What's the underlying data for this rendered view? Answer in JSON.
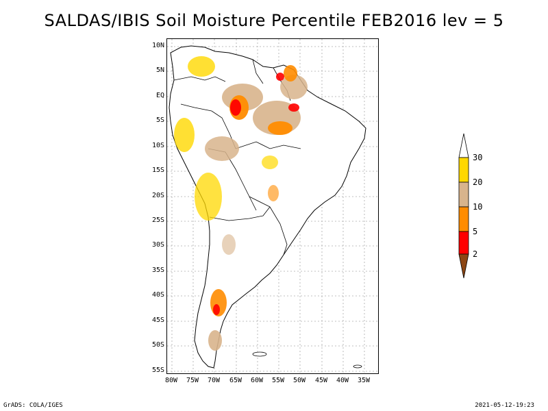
{
  "title": "SALDAS/IBIS Soil Moisture Percentile FEB2016 lev = 5",
  "lat_labels": [
    "10N",
    "5N",
    "EQ",
    "5S",
    "10S",
    "15S",
    "20S",
    "25S",
    "30S",
    "35S",
    "40S",
    "45S",
    "50S",
    "55S"
  ],
  "lon_labels": [
    "80W",
    "75W",
    "70W",
    "65W",
    "60W",
    "55W",
    "50W",
    "45W",
    "40W",
    "35W"
  ],
  "legend": {
    "labels": [
      "30",
      "20",
      "10",
      "5",
      "2"
    ],
    "colors": {
      "above30": "#ffffff",
      "p20_30": "#ffd800",
      "p10_20": "#d8b48c",
      "p5_10": "#ff8c00",
      "p2_5": "#ff0000",
      "below2": "#8c4614"
    }
  },
  "footer": {
    "left": "GrADS: COLA/IGES",
    "right": "2021-05-12-19:23"
  }
}
